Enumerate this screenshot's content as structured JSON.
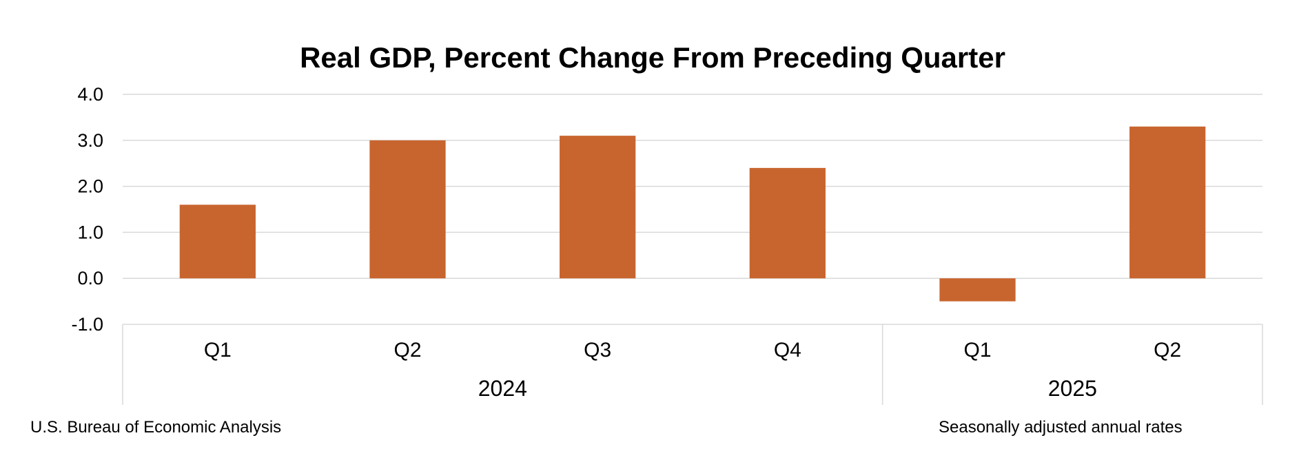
{
  "chart_data": {
    "type": "bar",
    "title": "Real GDP, Percent Change From Preceding Quarter",
    "xlabel": "",
    "ylabel": "",
    "categories": [
      "Q1",
      "Q2",
      "Q3",
      "Q4",
      "Q1",
      "Q2"
    ],
    "groups": [
      {
        "label": "2024",
        "count": 4
      },
      {
        "label": "2025",
        "count": 2
      }
    ],
    "values": [
      1.6,
      3.0,
      3.1,
      2.4,
      -0.5,
      3.3
    ],
    "ylim": [
      -1.0,
      4.0
    ],
    "yticks": [
      "4.0",
      "3.0",
      "2.0",
      "1.0",
      "0.0",
      "-1.0"
    ],
    "grid": true,
    "bar_color": "#C8652F",
    "grid_color": "#D9D9D9"
  },
  "footer": {
    "source": "U.S. Bureau of Economic Analysis",
    "note": "Seasonally adjusted annual rates"
  }
}
